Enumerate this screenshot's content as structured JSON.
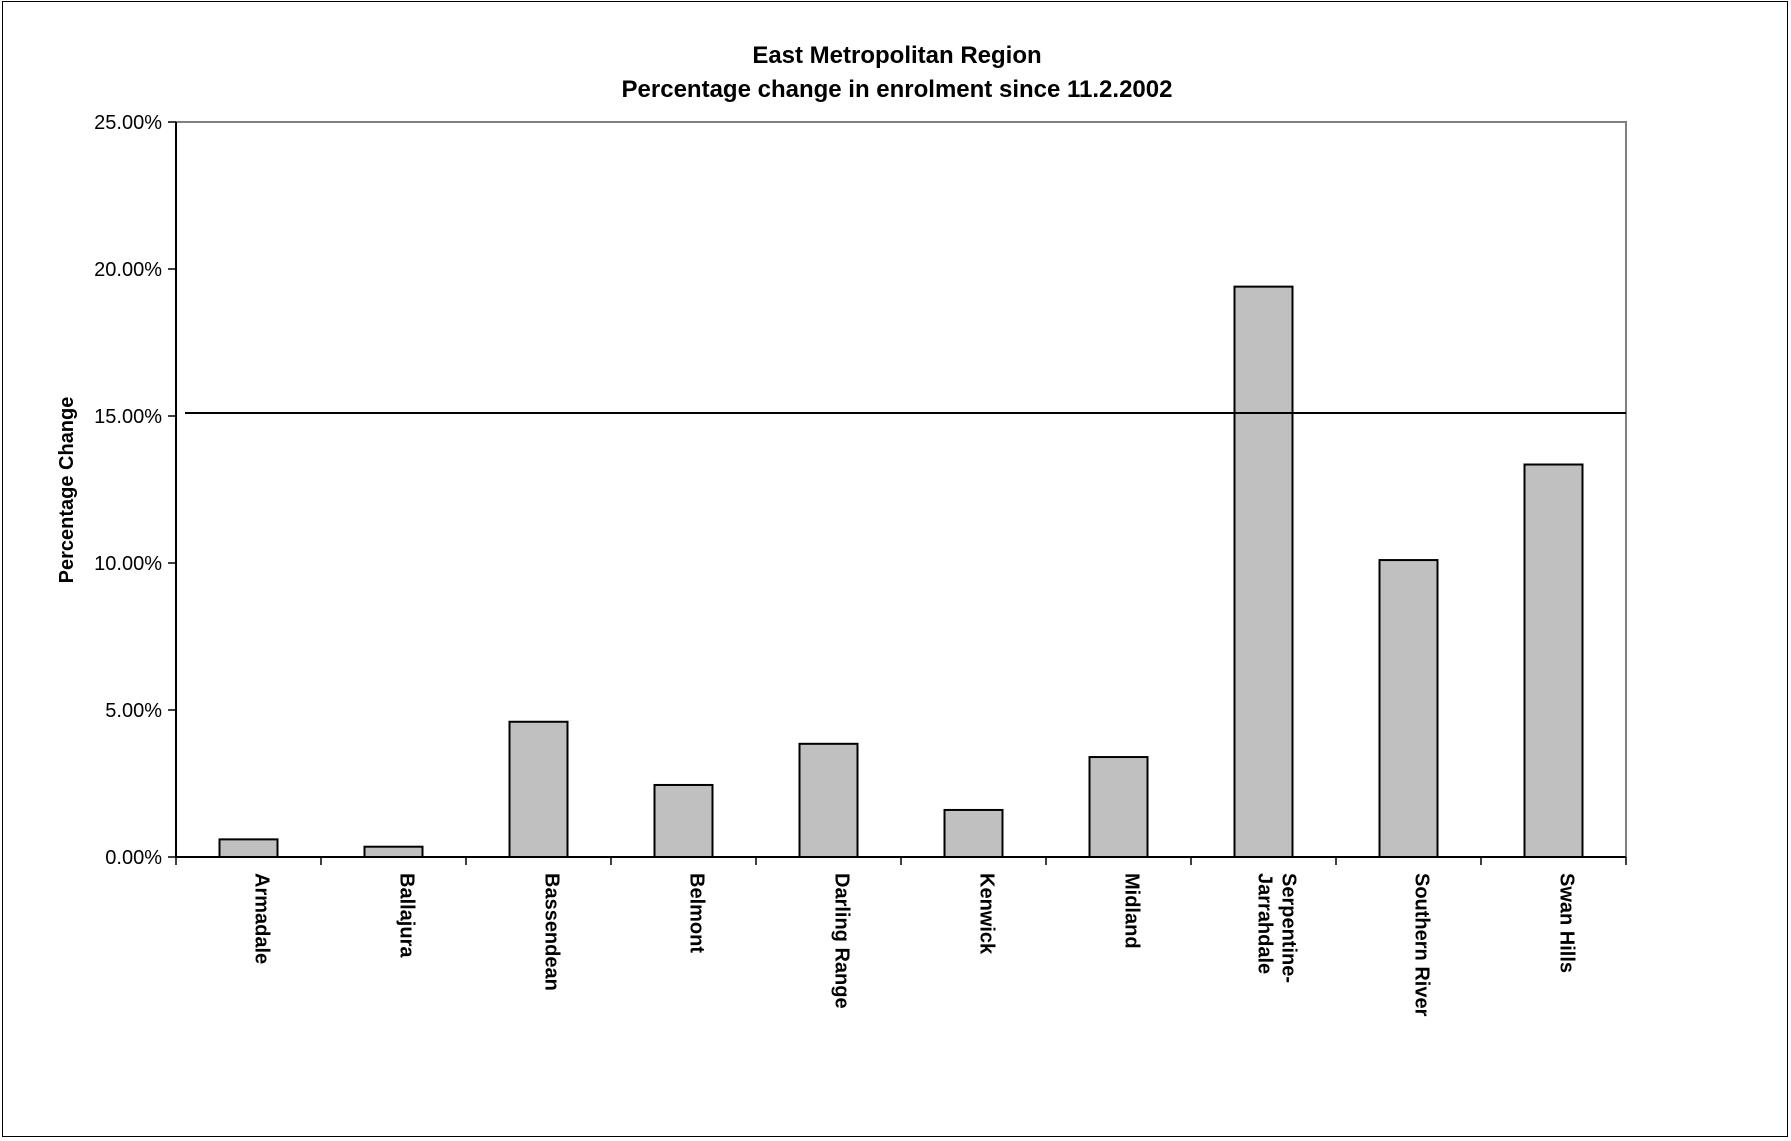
{
  "chart_data": {
    "type": "bar",
    "title": "East Metropolitan Region",
    "subtitle": "Percentage change in enrolment since 11.2.2002",
    "xlabel": "",
    "ylabel": "Percentage Change",
    "categories": [
      "Armadale",
      "Ballajura",
      "Bassendean",
      "Belmont",
      "Darling Range",
      "Kenwick",
      "Midland",
      "Serpentine-Jarrahdale",
      "Southern River",
      "Swan Hills"
    ],
    "category_labels": [
      [
        "Armadale"
      ],
      [
        "Ballajura"
      ],
      [
        "Bassendean"
      ],
      [
        "Belmont"
      ],
      [
        "Darling Range"
      ],
      [
        "Kenwick"
      ],
      [
        "Midland"
      ],
      [
        "Serpentine-",
        "Jarrahdale"
      ],
      [
        "Southern River"
      ],
      [
        "Swan Hills"
      ]
    ],
    "values": [
      0.6,
      0.35,
      4.6,
      2.45,
      3.85,
      1.6,
      3.4,
      19.4,
      10.1,
      13.35
    ],
    "ylim": [
      0,
      25
    ],
    "yticks": [
      0,
      5,
      10,
      15,
      20,
      25
    ],
    "ytick_labels": [
      "0.00%",
      "5.00%",
      "10.00%",
      "15.00%",
      "20.00%",
      "25.00%"
    ],
    "reference_line": 15.1,
    "grid": false,
    "legend": "none",
    "colors": {
      "bar_fill": "#c0c0c0",
      "bar_stroke": "#000000",
      "axis": "#000000",
      "plot_border": "#808080"
    }
  }
}
